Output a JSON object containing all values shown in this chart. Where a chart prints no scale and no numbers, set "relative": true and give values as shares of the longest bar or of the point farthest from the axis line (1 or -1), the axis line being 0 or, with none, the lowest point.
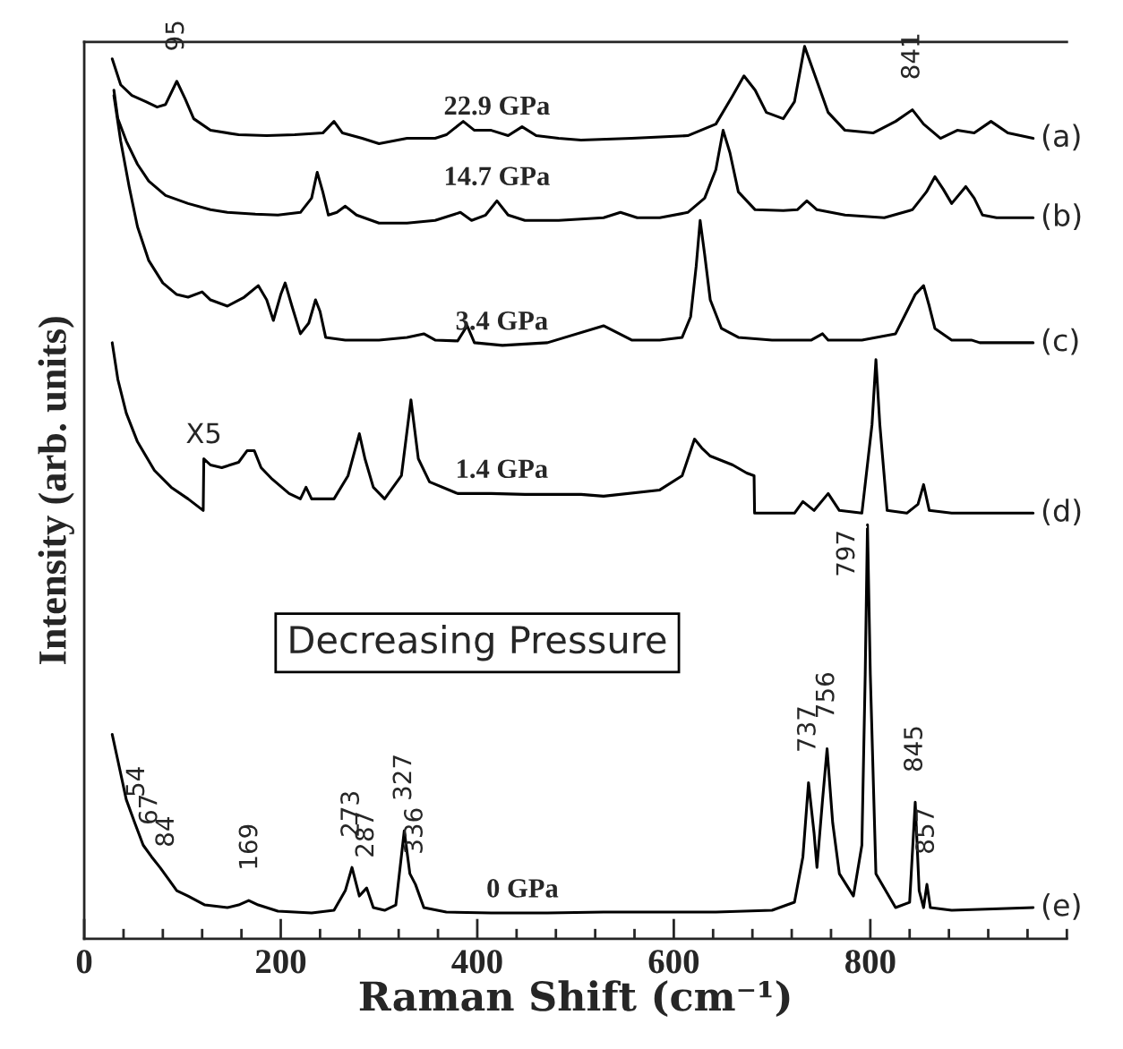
{
  "chart_data": {
    "type": "line",
    "relative": true,
    "xlabel": "Raman Shift (cm⁻¹)",
    "ylabel": "Intensity (arb. units)",
    "xlim": [
      0,
      1000
    ],
    "xticks": [
      0,
      200,
      400,
      600,
      800
    ],
    "grid": false,
    "legend": false,
    "marker": "none",
    "line_style": "solid",
    "series": [
      {
        "name": "(a)",
        "color": "#000000",
        "x": [
          28.5,
          37.1,
          48.5,
          62.8,
          74.2,
          82.8,
          94.2,
          102.8,
          111.4,
          128.5,
          157.1,
          185.7,
          214.2,
          242.8,
          254.2,
          262.8,
          282.8,
          300.0,
          328.5,
          357.1,
          368.5,
          385.7,
          397.1,
          414.2,
          431.4,
          445.6,
          460.0,
          482.8,
          505.6,
          557.1,
          614.2,
          642.8,
          660.0,
          671.4,
          682.8,
          694.2,
          711.4,
          722.8,
          733.1,
          742.8,
          757.1,
          774.2,
          802.8,
          825.7,
          842.8,
          854.2,
          871.4,
          888.5,
          905.7,
          922.8,
          940.0,
          965.7
        ],
        "values": [
          0.986,
          0.957,
          0.945,
          0.938,
          0.932,
          0.935,
          0.961,
          0.941,
          0.919,
          0.906,
          0.901,
          0.9,
          0.901,
          0.903,
          0.916,
          0.903,
          0.897,
          0.891,
          0.897,
          0.897,
          0.901,
          0.916,
          0.906,
          0.906,
          0.9,
          0.91,
          0.9,
          0.897,
          0.895,
          0.897,
          0.9,
          0.913,
          0.945,
          0.967,
          0.951,
          0.926,
          0.919,
          0.938,
          1.0,
          0.97,
          0.926,
          0.906,
          0.903,
          0.916,
          0.929,
          0.913,
          0.897,
          0.906,
          0.903,
          0.916,
          0.903,
          0.897
        ]
      },
      {
        "name": "(b)",
        "color": "#000000",
        "x": [
          30.2,
          34.2,
          42.8,
          54.2,
          65.7,
          82.8,
          105.7,
          128.5,
          145.7,
          174.2,
          197.1,
          220.0,
          231.4,
          237.1,
          242.8,
          248.5,
          257.1,
          265.7,
          277.1,
          300.0,
          328.5,
          357.1,
          382.8,
          394.2,
          408.5,
          420.0,
          431.4,
          448.5,
          482.8,
          528.5,
          545.7,
          562.8,
          585.7,
          614.2,
          631.4,
          642.8,
          650.2,
          657.1,
          665.7,
          682.8,
          711.4,
          725.7,
          735.4,
          745.7,
          774.2,
          814.2,
          842.8,
          857.1,
          865.7,
          874.2,
          882.8,
          897.1,
          905.7,
          914.2,
          928.5,
          965.7
        ],
        "values": [
          0.951,
          0.919,
          0.894,
          0.868,
          0.849,
          0.833,
          0.824,
          0.817,
          0.814,
          0.812,
          0.811,
          0.814,
          0.83,
          0.859,
          0.837,
          0.811,
          0.814,
          0.821,
          0.811,
          0.802,
          0.802,
          0.805,
          0.814,
          0.805,
          0.811,
          0.827,
          0.811,
          0.805,
          0.805,
          0.808,
          0.814,
          0.808,
          0.808,
          0.814,
          0.83,
          0.862,
          0.906,
          0.881,
          0.837,
          0.817,
          0.816,
          0.817,
          0.827,
          0.817,
          0.811,
          0.808,
          0.817,
          0.837,
          0.854,
          0.84,
          0.824,
          0.843,
          0.83,
          0.811,
          0.808,
          0.808
        ]
      },
      {
        "name": "(c)",
        "color": "#000000",
        "x": [
          30.2,
          37.1,
          45.7,
          54.2,
          65.7,
          80.0,
          94.2,
          105.7,
          120.0,
          128.5,
          145.7,
          162.8,
          177.1,
          185.7,
          192.5,
          200.0,
          204.5,
          211.4,
          220.0,
          228.5,
          235.4,
          240.0,
          245.7,
          265.7,
          300.0,
          328.5,
          345.6,
          357.1,
          380.0,
          389.7,
          397.1,
          425.6,
          471.4,
          528.5,
          557.1,
          585.7,
          608.5,
          617.1,
          622.8,
          626.8,
          631.4,
          637.1,
          648.5,
          665.7,
          700.0,
          740.0,
          751.4,
          757.1,
          791.4,
          825.7,
          837.1,
          845.7,
          854.2,
          860.0,
          865.7,
          882.8,
          902.8,
          911.4,
          965.7
        ],
        "values": [
          0.945,
          0.894,
          0.843,
          0.798,
          0.76,
          0.735,
          0.722,
          0.719,
          0.725,
          0.716,
          0.709,
          0.719,
          0.732,
          0.716,
          0.693,
          0.722,
          0.735,
          0.709,
          0.678,
          0.69,
          0.716,
          0.703,
          0.674,
          0.671,
          0.671,
          0.674,
          0.678,
          0.671,
          0.67,
          0.687,
          0.668,
          0.665,
          0.668,
          0.687,
          0.671,
          0.671,
          0.674,
          0.697,
          0.754,
          0.805,
          0.767,
          0.716,
          0.684,
          0.674,
          0.671,
          0.671,
          0.678,
          0.671,
          0.671,
          0.678,
          0.703,
          0.722,
          0.732,
          0.709,
          0.684,
          0.671,
          0.671,
          0.668,
          0.668
        ]
      },
      {
        "name": "(d)",
        "color": "#000000",
        "x": [
          28.5,
          34.2,
          42.8,
          54.2,
          71.4,
          88.5,
          105.7,
          121.1,
          121.7,
          128.5,
          140.0,
          157.1,
          165.7,
          173.1,
          180.0,
          191.4,
          208.5,
          220.0,
          225.7,
          231.4,
          254.2,
          268.5,
          280.0,
          285.7,
          294.2,
          305.7,
          322.8,
          332.5,
          340.0,
          351.4,
          380.0,
          414.2,
          448.5,
          505.6,
          528.5,
          585.7,
          608.5,
          621.1,
          628.5,
          637.1,
          660.0,
          674.2,
          681.7,
          682.2,
          700.0,
          722.8,
          731.4,
          742.8,
          757.1,
          768.5,
          791.4,
          801.7,
          805.7,
          809.7,
          817.1,
          837.1,
          848.5,
          854.2,
          860.0,
          882.8,
          965.7
        ],
        "values": [
          0.668,
          0.627,
          0.589,
          0.557,
          0.525,
          0.506,
          0.493,
          0.48,
          0.538,
          0.531,
          0.528,
          0.534,
          0.547,
          0.547,
          0.528,
          0.515,
          0.499,
          0.493,
          0.506,
          0.493,
          0.493,
          0.519,
          0.566,
          0.538,
          0.506,
          0.493,
          0.519,
          0.604,
          0.538,
          0.512,
          0.499,
          0.499,
          0.498,
          0.498,
          0.496,
          0.503,
          0.519,
          0.56,
          0.55,
          0.541,
          0.531,
          0.522,
          0.519,
          0.477,
          0.477,
          0.477,
          0.49,
          0.48,
          0.499,
          0.48,
          0.477,
          0.576,
          0.649,
          0.576,
          0.48,
          0.477,
          0.487,
          0.509,
          0.48,
          0.477,
          0.477
        ]
      },
      {
        "name": "(e)",
        "color": "#000000",
        "x": [
          28.5,
          34.2,
          42.8,
          51.4,
          60.0,
          68.5,
          77.1,
          85.7,
          94.2,
          105.7,
          122.8,
          145.7,
          157.1,
          167.4,
          177.1,
          197.1,
          231.4,
          254.2,
          265.7,
          272.5,
          280.0,
          287.4,
          294.2,
          305.7,
          317.1,
          325.7,
          331.4,
          337.1,
          345.6,
          368.5,
          414.2,
          471.4,
          528.5,
          585.7,
          642.8,
          700.0,
          722.8,
          731.4,
          737.1,
          742.8,
          745.7,
          751.4,
          756.0,
          761.7,
          768.5,
          782.8,
          791.4,
          794.8,
          797.1,
          800.0,
          805.7,
          825.7,
          840.0,
          845.7,
          849.7,
          854.2,
          857.6,
          861.1,
          882.8,
          965.7
        ],
        "values": [
          0.229,
          0.2,
          0.156,
          0.13,
          0.105,
          0.092,
          0.08,
          0.067,
          0.054,
          0.048,
          0.038,
          0.035,
          0.038,
          0.043,
          0.038,
          0.031,
          0.029,
          0.032,
          0.054,
          0.08,
          0.048,
          0.057,
          0.035,
          0.032,
          0.038,
          0.121,
          0.073,
          0.061,
          0.035,
          0.03,
          0.029,
          0.029,
          0.03,
          0.03,
          0.03,
          0.032,
          0.041,
          0.092,
          0.175,
          0.118,
          0.08,
          0.156,
          0.213,
          0.13,
          0.073,
          0.048,
          0.105,
          0.296,
          0.464,
          0.296,
          0.073,
          0.035,
          0.041,
          0.153,
          0.054,
          0.035,
          0.061,
          0.035,
          0.032,
          0.035
        ]
      }
    ],
    "annotations": [
      {
        "text": "22.9 GPa",
        "x": 420,
        "y": 0.906
      },
      {
        "text": "14.7 GPa",
        "x": 420,
        "y": 0.827
      },
      {
        "text": "3.4 GPa",
        "x": 425,
        "y": 0.665
      },
      {
        "text": "1.4 GPa",
        "x": 425,
        "y": 0.499
      },
      {
        "text": "0 GPa",
        "x": 446,
        "y": 0.029
      },
      {
        "text": "X5",
        "x": 121.7,
        "y": 0.538
      },
      {
        "text": "95",
        "x": 94.2,
        "y": 0.961
      },
      {
        "text": "841",
        "x": 842.8,
        "y": 0.929
      },
      {
        "text": "54",
        "x": 54,
        "y": 0.125
      },
      {
        "text": "67",
        "x": 67,
        "y": 0.094
      },
      {
        "text": "84",
        "x": 84,
        "y": 0.069
      },
      {
        "text": "169",
        "x": 169,
        "y": 0.043
      },
      {
        "text": "273",
        "x": 272.5,
        "y": 0.08
      },
      {
        "text": "287",
        "x": 287.4,
        "y": 0.057
      },
      {
        "text": "327",
        "x": 325.7,
        "y": 0.121
      },
      {
        "text": "336",
        "x": 337.1,
        "y": 0.061
      },
      {
        "text": "737",
        "x": 737.1,
        "y": 0.175
      },
      {
        "text": "756",
        "x": 756.0,
        "y": 0.213
      },
      {
        "text": "797",
        "x": 797.1,
        "y": 0.464
      },
      {
        "text": "845",
        "x": 845.7,
        "y": 0.153
      },
      {
        "text": "857",
        "x": 857.6,
        "y": 0.061
      },
      "Decreasing Pressure"
    ]
  }
}
